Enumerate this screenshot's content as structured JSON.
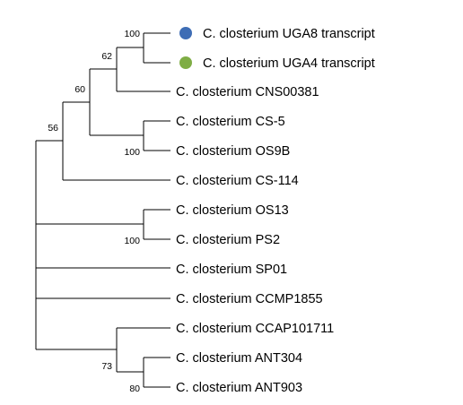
{
  "taxa": [
    {
      "id": "uga8",
      "label": "C. closterium UGA8 transcript",
      "marker_color": "#3e6db5"
    },
    {
      "id": "uga4",
      "label": "C. closterium UGA4 transcript",
      "marker_color": "#7fad45"
    },
    {
      "id": "cns00381",
      "label": "C. closterium CNS00381"
    },
    {
      "id": "cs5",
      "label": "C. closterium CS-5"
    },
    {
      "id": "os9b",
      "label": "C. closterium OS9B"
    },
    {
      "id": "cs114",
      "label": "C. closterium CS-114"
    },
    {
      "id": "os13",
      "label": "C. closterium OS13"
    },
    {
      "id": "ps2",
      "label": "C. closterium PS2"
    },
    {
      "id": "sp01",
      "label": "C. closterium SP01"
    },
    {
      "id": "ccmp1855",
      "label": "C. closterium CCMP1855"
    },
    {
      "id": "ccap101711",
      "label": "C. closterium CCAP101711"
    },
    {
      "id": "ant304",
      "label": "C. closterium ANT304"
    },
    {
      "id": "ant903",
      "label": "C. closterium ANT903"
    }
  ],
  "support_values": {
    "uga_pair": "100",
    "uga_cns": "62",
    "uga_cns_cs_os9b": "60",
    "with_cs114": "56",
    "cs5_os9b": "100",
    "os13_ps2": "100",
    "ccap_ant": "73",
    "ant_pair": "80"
  },
  "colors": {
    "branch": "#000000",
    "uga8_marker": "#3e6db5",
    "uga4_marker": "#7fad45"
  }
}
